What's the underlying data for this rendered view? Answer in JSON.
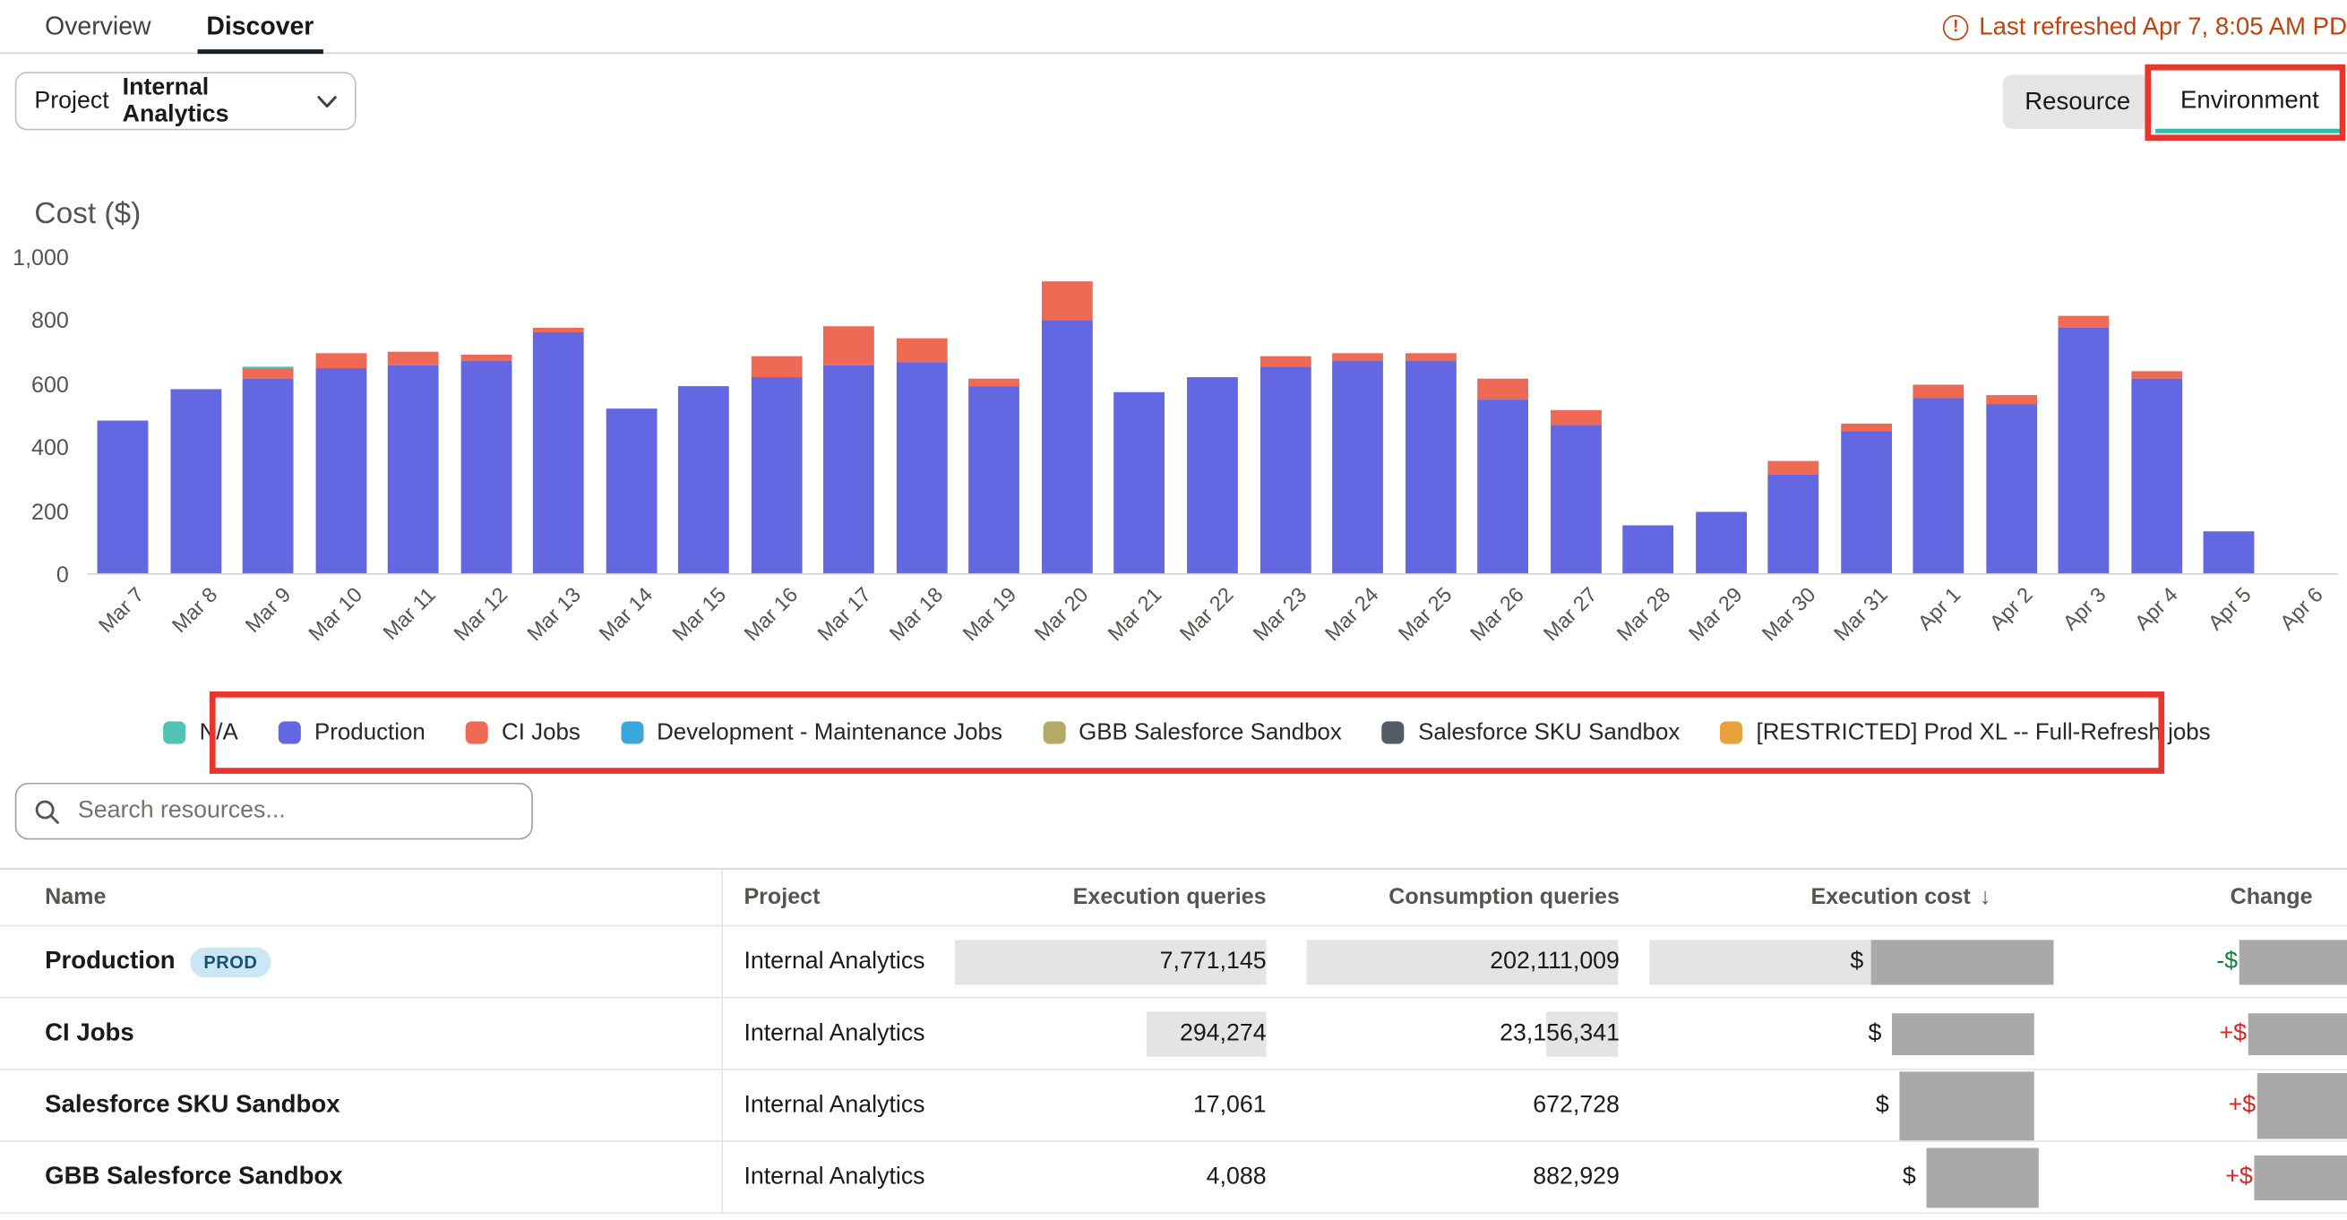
{
  "tabs": {
    "overview": "Overview",
    "discover": "Discover"
  },
  "refresh": {
    "icon_char": "!",
    "text": "Last refreshed Apr 7, 8:05 AM PD"
  },
  "filters": {
    "project_label": "Project",
    "project_value": "Internal Analytics",
    "resource_button": "Resource",
    "environment_button": "Environment"
  },
  "chart_data": {
    "type": "bar",
    "stacked": true,
    "title": "Cost ($)",
    "ylabel": "Cost ($)",
    "ylim": [
      0,
      1000
    ],
    "yticks": [
      0,
      200,
      400,
      600,
      800,
      1000
    ],
    "ytick_labels": [
      "0",
      "200",
      "400",
      "600",
      "800",
      "1,000"
    ],
    "categories": [
      "Mar 7",
      "Mar 8",
      "Mar 9",
      "Mar 10",
      "Mar 11",
      "Mar 12",
      "Mar 13",
      "Mar 14",
      "Mar 15",
      "Mar 16",
      "Mar 17",
      "Mar 18",
      "Mar 19",
      "Mar 20",
      "Mar 21",
      "Mar 22",
      "Mar 23",
      "Mar 24",
      "Mar 25",
      "Mar 26",
      "Mar 27",
      "Mar 28",
      "Mar 29",
      "Mar 30",
      "Mar 31",
      "Apr 1",
      "Apr 2",
      "Apr 3",
      "Apr 4",
      "Apr 5",
      "Apr 6"
    ],
    "series": [
      {
        "name": "Production",
        "color": "#6467e2",
        "values": [
          480,
          580,
          615,
          645,
          655,
          668,
          760,
          520,
          590,
          620,
          655,
          665,
          588,
          795,
          572,
          616,
          650,
          668,
          672,
          545,
          468,
          150,
          195,
          310,
          450,
          550,
          535,
          775,
          614,
          130,
          0
        ]
      },
      {
        "name": "CI Jobs",
        "color": "#ee6a54",
        "values": [
          0,
          0,
          30,
          50,
          45,
          22,
          15,
          0,
          0,
          62,
          125,
          75,
          27,
          125,
          0,
          0,
          35,
          27,
          22,
          70,
          45,
          0,
          0,
          42,
          22,
          45,
          25,
          35,
          22,
          0,
          0
        ]
      },
      {
        "name": "N/A",
        "color": "#4fc2b4",
        "values": [
          0,
          0,
          8,
          0,
          0,
          0,
          0,
          0,
          0,
          0,
          0,
          0,
          0,
          0,
          0,
          0,
          0,
          0,
          0,
          0,
          0,
          0,
          0,
          0,
          0,
          0,
          0,
          0,
          0,
          0,
          0
        ]
      }
    ],
    "legend": [
      {
        "label": "N/A",
        "color": "#4fc2b4"
      },
      {
        "label": "Production",
        "color": "#6467e2"
      },
      {
        "label": "CI Jobs",
        "color": "#ee6a54"
      },
      {
        "label": "Development - Maintenance Jobs",
        "color": "#39a7dc"
      },
      {
        "label": "GBB Salesforce Sandbox",
        "color": "#b3aa68"
      },
      {
        "label": "Salesforce SKU Sandbox",
        "color": "#525c66"
      },
      {
        "label": "[RESTRICTED] Prod XL -- Full-Refresh jobs",
        "color": "#e9a23b"
      }
    ],
    "legend_position": "bottom",
    "grid": false
  },
  "search": {
    "placeholder": "Search resources..."
  },
  "table": {
    "columns": [
      "Name",
      "Project",
      "Execution queries",
      "Consumption queries",
      "Execution cost",
      "Change"
    ],
    "sort_column": "Execution cost",
    "sort_arrow": "↓",
    "rows": [
      {
        "name": "Production",
        "badge": "PROD",
        "project": "Internal Analytics",
        "execution_queries": "7,771,145",
        "consumption_queries": "202,111,009",
        "cost_prefix": "$",
        "change_prefix": "-$",
        "change_sign": "negative",
        "masks": {
          "exec_bar": 208,
          "cons_bar": 208,
          "cost_bar": 148,
          "cost_mask_w": 122,
          "cost_mask_h": 30,
          "cost_mask_mr": 3,
          "change_mask_w": 72,
          "change_mask_h": 30
        }
      },
      {
        "name": "CI Jobs",
        "badge": null,
        "project": "Internal Analytics",
        "execution_queries": "294,274",
        "consumption_queries": "23,156,341",
        "cost_prefix": "$",
        "change_prefix": "+$",
        "change_sign": "positive",
        "masks": {
          "exec_bar": 80,
          "cons_bar": 48,
          "cost_bar": 0,
          "cost_mask_w": 95,
          "cost_mask_h": 28,
          "cost_mask_mr": 16,
          "change_mask_w": 66,
          "change_mask_h": 28
        }
      },
      {
        "name": "Salesforce SKU Sandbox",
        "badge": null,
        "project": "Internal Analytics",
        "execution_queries": "17,061",
        "consumption_queries": "672,728",
        "cost_prefix": "$",
        "change_prefix": "+$",
        "change_sign": "positive",
        "masks": {
          "exec_bar": 0,
          "cons_bar": 0,
          "cost_bar": 0,
          "cost_mask_w": 90,
          "cost_mask_h": 46,
          "cost_mask_mr": 16,
          "change_mask_w": 60,
          "change_mask_h": 44
        }
      },
      {
        "name": "GBB Salesforce Sandbox",
        "badge": null,
        "project": "Internal Analytics",
        "execution_queries": "4,088",
        "consumption_queries": "882,929",
        "cost_prefix": "$",
        "change_prefix": "+$",
        "change_sign": "positive",
        "masks": {
          "exec_bar": 0,
          "cons_bar": 0,
          "cost_bar": 0,
          "cost_mask_w": 75,
          "cost_mask_h": 40,
          "cost_mask_mr": 13,
          "change_mask_w": 62,
          "change_mask_h": 30
        }
      }
    ]
  },
  "colors": {
    "annotation_highlight": "#e8362c",
    "refresh_text": "#c2410c",
    "negative_change": "#15803d",
    "positive_change": "#dc2626",
    "active_tab_underline": "#18212b",
    "environment_active_underline": "#2fbfa9",
    "databar_fill": "#e4e4e4",
    "redaction_fill": "#a9a9a9",
    "badge_bg": "#cbe7f6",
    "badge_text": "#16516e"
  }
}
